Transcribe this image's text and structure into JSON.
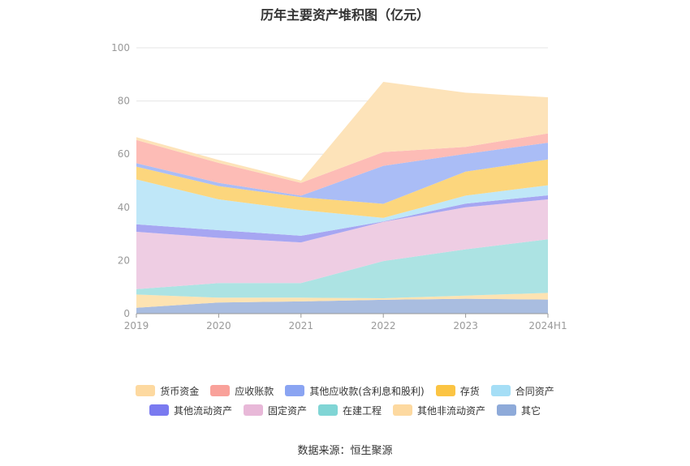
{
  "chart_data": {
    "type": "area",
    "title": "历年主要资产堆积图（亿元）",
    "categories": [
      "2019",
      "2020",
      "2021",
      "2022",
      "2023",
      "2024H1"
    ],
    "ylim": [
      0,
      100
    ],
    "yticks": [
      0,
      20,
      40,
      60,
      80,
      100
    ],
    "stacked": true,
    "grid": true,
    "legend_position": "bottom",
    "series": [
      {
        "name": "其它",
        "color": "#a9bde0",
        "values": [
          2.2,
          4.2,
          4.6,
          5.2,
          5.6,
          5.3
        ]
      },
      {
        "name": "其他非流动资产",
        "color": "#fde3b2",
        "values": [
          5.0,
          1.8,
          1.4,
          0.6,
          1.2,
          2.5
        ]
      },
      {
        "name": "在建工程",
        "color": "#ace3e3",
        "values": [
          2.0,
          5.5,
          5.5,
          14.0,
          17.4,
          20.2
        ]
      },
      {
        "name": "固定资产",
        "color": "#eecde3",
        "values": [
          21.6,
          17.0,
          15.3,
          14.7,
          15.8,
          15.0
        ]
      },
      {
        "name": "其他流动资产",
        "color": "#a6a6f2",
        "values": [
          2.8,
          2.9,
          2.5,
          0.2,
          1.4,
          1.5
        ]
      },
      {
        "name": "合同资产",
        "color": "#bfe7f8",
        "values": [
          16.9,
          11.6,
          9.7,
          1.3,
          3.0,
          3.8
        ]
      },
      {
        "name": "存货",
        "color": "#fcd67d",
        "values": [
          4.8,
          5.0,
          4.8,
          5.3,
          9.0,
          9.7
        ]
      },
      {
        "name": "其他应收款(含利息和股利)",
        "color": "#aabdf6",
        "values": [
          1.3,
          1.2,
          0.6,
          14.3,
          6.7,
          6.3
        ]
      },
      {
        "name": "应收账款",
        "color": "#fdbcb6",
        "values": [
          8.7,
          7.5,
          4.8,
          5.2,
          2.6,
          3.5
        ]
      },
      {
        "name": "货币资金",
        "color": "#fde3b9",
        "values": [
          1.1,
          1.1,
          0.9,
          26.4,
          20.4,
          13.6
        ]
      }
    ],
    "source": "数据来源：恒生聚源"
  },
  "legend": {
    "row1": [
      {
        "label": "货币资金",
        "color": "#fdd9a0"
      },
      {
        "label": "应收账款",
        "color": "#f9a19a"
      },
      {
        "label": "其他应收款(含利息和股利)",
        "color": "#8aa4f2"
      },
      {
        "label": "存货",
        "color": "#fbc443"
      },
      {
        "label": "合同资产",
        "color": "#a5def6"
      }
    ],
    "row2": [
      {
        "label": "其他流动资产",
        "color": "#7a7af0"
      },
      {
        "label": "固定资产",
        "color": "#e8b8d8"
      },
      {
        "label": "在建工程",
        "color": "#80d5d5"
      },
      {
        "label": "其他非流动资产",
        "color": "#fdd9a0"
      },
      {
        "label": "其它",
        "color": "#8eaad9"
      }
    ]
  }
}
